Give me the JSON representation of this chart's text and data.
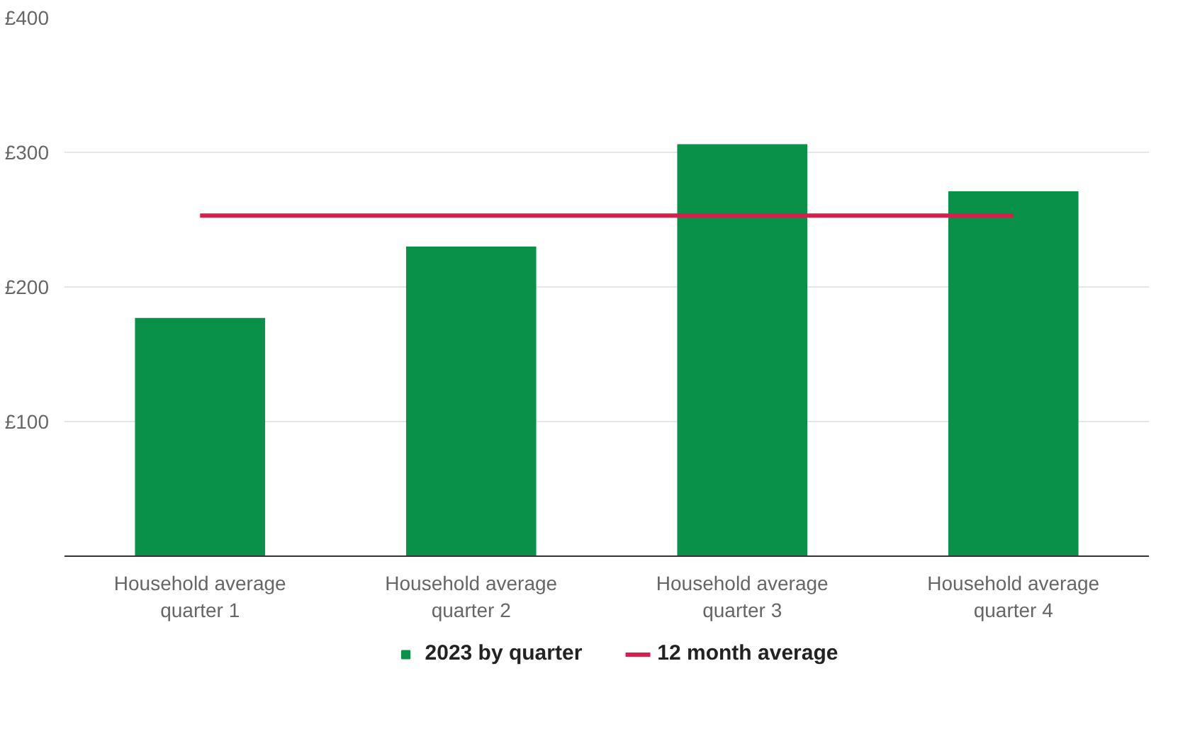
{
  "chart_data": {
    "type": "bar",
    "categories": [
      "Household average quarter 1",
      "Household average quarter 2",
      "Household average quarter 3",
      "Household average quarter 4"
    ],
    "series": [
      {
        "name": "2023 by quarter",
        "color": "#0a9149",
        "values": [
          177,
          230,
          306,
          271
        ]
      },
      {
        "name": "12 month average",
        "type": "line",
        "color": "#d61f4a",
        "values": [
          253,
          253,
          253,
          253
        ]
      }
    ],
    "ylim": [
      0,
      400
    ],
    "yticks": [
      {
        "value": 0,
        "label": null
      },
      {
        "value": 100,
        "label": "£100"
      },
      {
        "value": 200,
        "label": "£200"
      },
      {
        "value": 300,
        "label": "£300"
      },
      {
        "value": 400,
        "label": "£400"
      }
    ],
    "grid": "y",
    "legend": "bottom"
  }
}
